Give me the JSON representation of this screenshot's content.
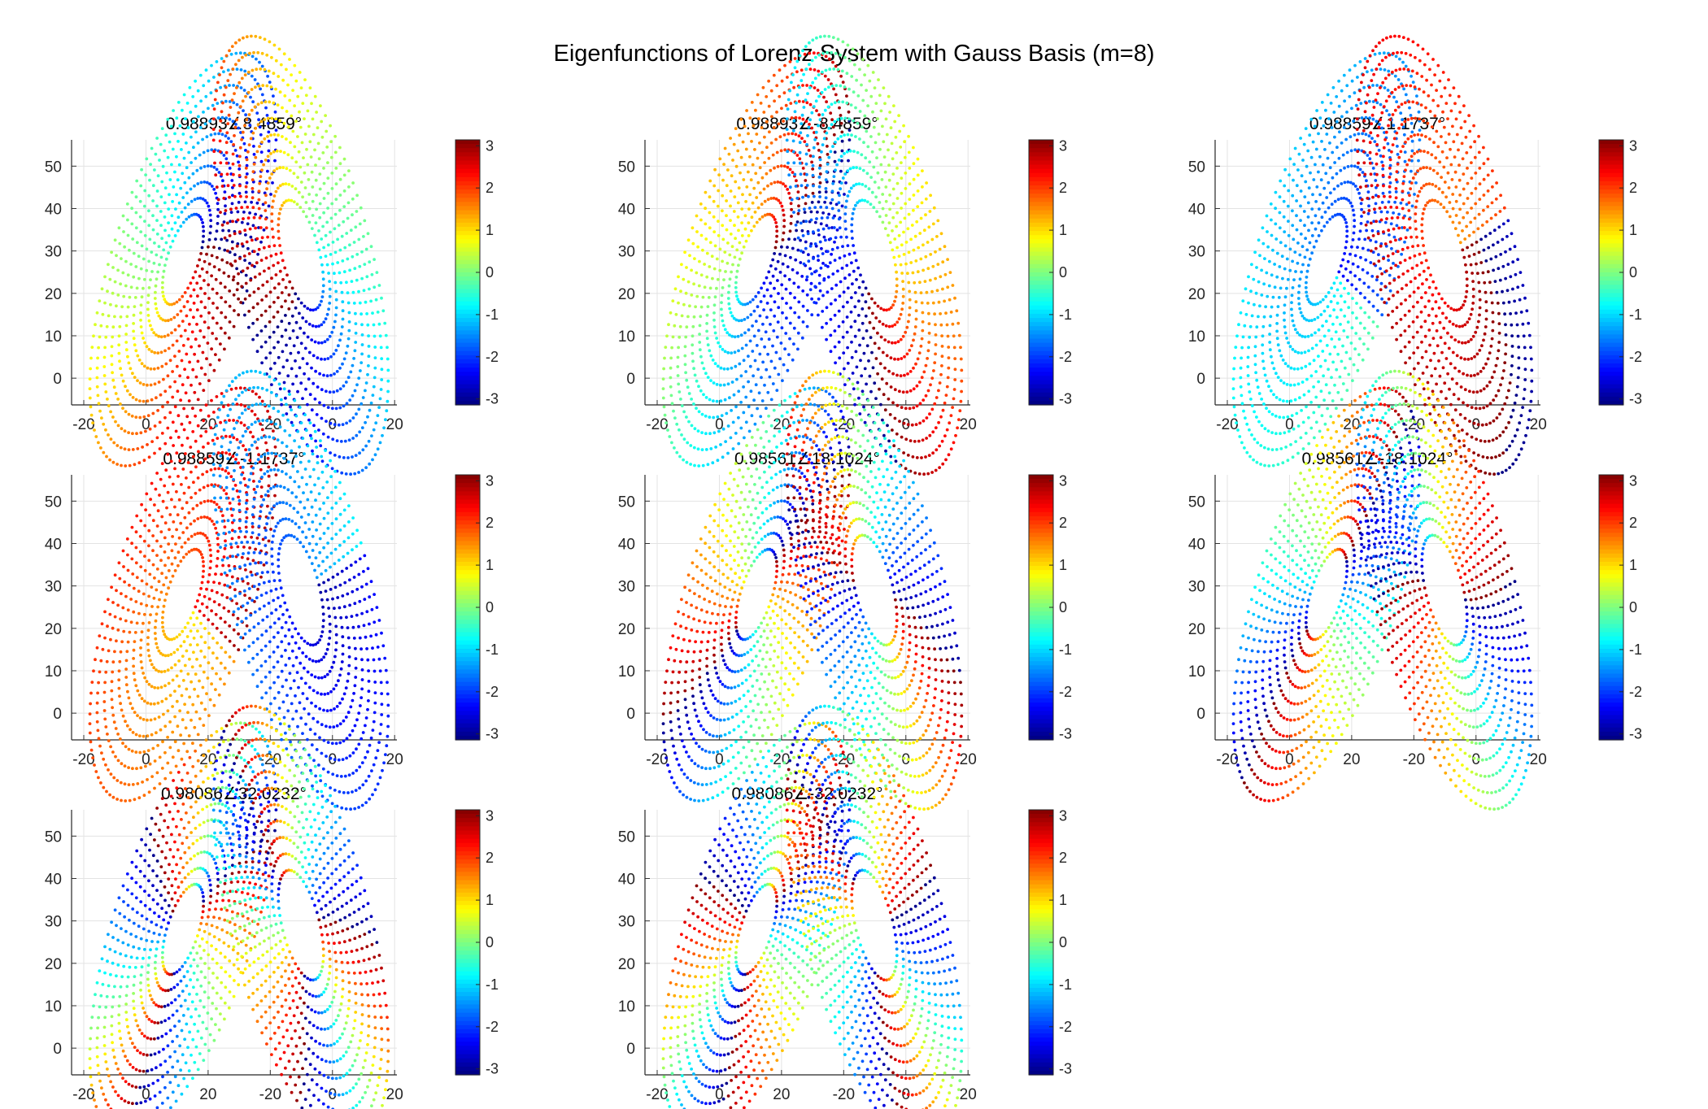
{
  "figure_title": "Eigenfunctions of Lorenz System with Gauss Basis (m=8)",
  "chart_data": [
    {
      "type": "scatter",
      "title": "0.98893∠8.4859°",
      "xlabel": "",
      "ylabel": "",
      "x_ticks": [
        "-20",
        "0",
        "20",
        "-20",
        "0",
        "20"
      ],
      "y_ticks": [
        0,
        10,
        20,
        30,
        40,
        50
      ],
      "ylim": [
        -6.3,
        56.2
      ],
      "colorbar": {
        "ticks": [
          3,
          2,
          1,
          0,
          -1,
          -2,
          -3
        ],
        "range": [
          -3.14,
          3.14
        ],
        "colormap": "jet"
      },
      "grid": true,
      "phase": {
        "k": 1,
        "offset": 2.6,
        "sign": 1
      }
    },
    {
      "type": "scatter",
      "title": "0.98893∠-8.4859°",
      "xlabel": "",
      "ylabel": "",
      "x_ticks": [
        "-20",
        "0",
        "20",
        "-20",
        "0",
        "20"
      ],
      "y_ticks": [
        0,
        10,
        20,
        30,
        40,
        50
      ],
      "ylim": [
        -6.3,
        56.2
      ],
      "colorbar": {
        "ticks": [
          3,
          2,
          1,
          0,
          -1,
          -2,
          -3
        ],
        "range": [
          -3.14,
          3.14
        ],
        "colormap": "jet"
      },
      "grid": true,
      "phase": {
        "k": 1,
        "offset": -2.6,
        "sign": -1
      }
    },
    {
      "type": "scatter",
      "title": "0.98859∠1.1737°",
      "xlabel": "",
      "ylabel": "",
      "x_ticks": [
        "-20",
        "0",
        "20",
        "-20",
        "0",
        "20"
      ],
      "y_ticks": [
        0,
        10,
        20,
        30,
        40,
        50
      ],
      "ylim": [
        -6.3,
        56.2
      ],
      "colorbar": {
        "ticks": [
          3,
          2,
          1,
          0,
          -1,
          -2,
          -3
        ],
        "range": [
          -3.14,
          3.14
        ],
        "colormap": "jet"
      },
      "grid": true,
      "phase": {
        "k": 1,
        "offset": 1.2,
        "sign": 1,
        "lobe": true
      }
    },
    {
      "type": "scatter",
      "title": "0.98859∠-1.1737°",
      "xlabel": "",
      "ylabel": "",
      "x_ticks": [
        "-20",
        "0",
        "20",
        "-20",
        "0",
        "20"
      ],
      "y_ticks": [
        0,
        10,
        20,
        30,
        40,
        50
      ],
      "ylim": [
        -6.3,
        56.2
      ],
      "colorbar": {
        "ticks": [
          3,
          2,
          1,
          0,
          -1,
          -2,
          -3
        ],
        "range": [
          -3.14,
          3.14
        ],
        "colormap": "jet"
      },
      "grid": true,
      "phase": {
        "k": 1,
        "offset": -1.2,
        "sign": -1,
        "lobe": true
      }
    },
    {
      "type": "scatter",
      "title": "0.98561∠18.1024°",
      "xlabel": "",
      "ylabel": "",
      "x_ticks": [
        "-20",
        "0",
        "20",
        "-20",
        "0",
        "20"
      ],
      "y_ticks": [
        0,
        10,
        20,
        30,
        40,
        50
      ],
      "ylim": [
        -6.3,
        56.2
      ],
      "colorbar": {
        "ticks": [
          3,
          2,
          1,
          0,
          -1,
          -2,
          -3
        ],
        "range": [
          -3.14,
          3.14
        ],
        "colormap": "jet"
      },
      "grid": true,
      "phase": {
        "k": 2,
        "offset": 0.8,
        "sign": 1
      }
    },
    {
      "type": "scatter",
      "title": "0.98561∠-18.1024°",
      "xlabel": "",
      "ylabel": "",
      "x_ticks": [
        "-20",
        "0",
        "20",
        "-20",
        "0",
        "20"
      ],
      "y_ticks": [
        0,
        10,
        20,
        30,
        40,
        50
      ],
      "ylim": [
        -6.3,
        56.2
      ],
      "colorbar": {
        "ticks": [
          3,
          2,
          1,
          0,
          -1,
          -2,
          -3
        ],
        "range": [
          -3.14,
          3.14
        ],
        "colormap": "jet"
      },
      "grid": true,
      "phase": {
        "k": 2,
        "offset": -0.8,
        "sign": -1
      }
    },
    {
      "type": "scatter",
      "title": "0.98086∠32.0232°",
      "xlabel": "",
      "ylabel": "",
      "x_ticks": [
        "-20",
        "0",
        "20",
        "-20",
        "0",
        "20"
      ],
      "y_ticks": [
        0,
        10,
        20,
        30,
        40,
        50
      ],
      "ylim": [
        -6.3,
        56.2
      ],
      "colorbar": {
        "ticks": [
          3,
          2,
          1,
          0,
          -1,
          -2,
          -3
        ],
        "range": [
          -3.14,
          3.14
        ],
        "colormap": "jet"
      },
      "grid": true,
      "phase": {
        "k": 3,
        "offset": 0.4,
        "sign": 1
      }
    },
    {
      "type": "scatter",
      "title": "0.98086∠-32.0232°",
      "xlabel": "",
      "ylabel": "",
      "x_ticks": [
        "-20",
        "0",
        "20",
        "-20",
        "0",
        "20"
      ],
      "y_ticks": [
        0,
        10,
        20,
        30,
        40,
        50
      ],
      "ylim": [
        -6.3,
        56.2
      ],
      "colorbar": {
        "ticks": [
          3,
          2,
          1,
          0,
          -1,
          -2,
          -3
        ],
        "range": [
          -3.14,
          3.14
        ],
        "colormap": "jet"
      },
      "grid": true,
      "phase": {
        "k": 3,
        "offset": -0.4,
        "sign": -1
      }
    }
  ]
}
